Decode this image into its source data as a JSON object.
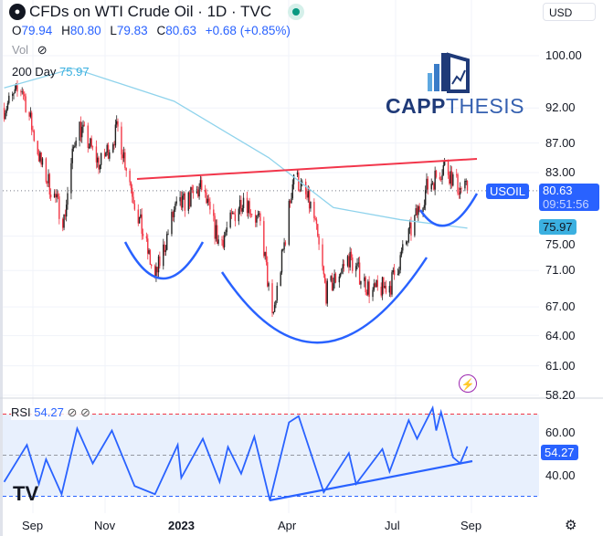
{
  "header": {
    "title": "CFDs on WTI Crude Oil · 1D · TVC",
    "status_color": "#089981",
    "ohlc": {
      "o_label": "O",
      "o": "79.94",
      "h_label": "H",
      "h": "80.80",
      "l_label": "L",
      "l": "79.83",
      "c_label": "C",
      "c": "80.63",
      "change": "+0.68 (+0.85%)"
    },
    "vol_label": "Vol",
    "ma_label": "200 Day",
    "ma_value": "75.97"
  },
  "currency": "USD",
  "symbol_tag": "USOIL",
  "last_price": "80.63",
  "countdown": "09:51:56",
  "ma_tag": "75.97",
  "logo": {
    "text_bold": "CAPP",
    "text_light": "THESIS"
  },
  "rsi": {
    "label": "RSI",
    "value": "54.27",
    "tag": "54.27"
  },
  "colors": {
    "up": "#222222",
    "down": "#f23645",
    "ma": "#8fd3ec",
    "trend_red": "#f2364b",
    "pattern_blue": "#2962ff",
    "rsi": "#2962ff",
    "rsi_band": "#e8f0fd"
  },
  "chart_data": [
    {
      "type": "candlestick",
      "scale": "log",
      "title": "CFDs on WTI Crude Oil · 1D · TVC",
      "y_ticks": [
        "100.00",
        "92.00",
        "87.00",
        "83.00",
        "75.00",
        "71.00",
        "67.00",
        "64.00",
        "61.00",
        "58.20"
      ],
      "x_ticks": [
        "Sep",
        "Nov",
        "2023",
        "Apr",
        "Jul",
        "Sep"
      ],
      "close_path": [
        [
          "2022-08-08",
          92
        ],
        [
          "2022-08-23",
          95
        ],
        [
          "2022-09-08",
          84
        ],
        [
          "2022-09-27",
          77
        ],
        [
          "2022-10-08",
          90
        ],
        [
          "2022-10-27",
          84
        ],
        [
          "2022-11-11",
          89
        ],
        [
          "2022-11-27",
          78
        ],
        [
          "2022-12-12",
          70
        ],
        [
          "2022-12-28",
          78
        ],
        [
          "2023-01-20",
          81
        ],
        [
          "2023-02-04",
          74
        ],
        [
          "2023-02-24",
          80
        ],
        [
          "2023-03-11",
          76
        ],
        [
          "2023-03-20",
          65.5
        ],
        [
          "2023-03-31",
          75
        ],
        [
          "2023-04-07",
          83
        ],
        [
          "2023-04-23",
          78
        ],
        [
          "2023-05-04",
          68.5
        ],
        [
          "2023-05-23",
          72.5
        ],
        [
          "2023-06-11",
          68.5
        ],
        [
          "2023-06-27",
          69.5
        ],
        [
          "2023-07-12",
          75
        ],
        [
          "2023-07-27",
          81
        ],
        [
          "2023-08-11",
          84
        ],
        [
          "2023-08-23",
          81
        ],
        [
          "2023-08-30",
          80.63
        ]
      ],
      "ma200": {
        "name": "200 Day",
        "points": [
          [
            "2022-08-08",
            95
          ],
          [
            "2022-10-05",
            98
          ],
          [
            "2022-12-28",
            93
          ],
          [
            "2023-03-17",
            85
          ],
          [
            "2023-05-10",
            78.5
          ],
          [
            "2023-07-05",
            77
          ],
          [
            "2023-08-30",
            75.97
          ]
        ]
      }
    },
    {
      "type": "line",
      "title": "RSI",
      "ylim": [
        20,
        80
      ],
      "levels": [
        70,
        50,
        30
      ],
      "y_ticks": [
        "60.00",
        "40.00"
      ],
      "points": [
        [
          "2022-08-08",
          37
        ],
        [
          "2022-08-27",
          55
        ],
        [
          "2022-09-06",
          36
        ],
        [
          "2022-09-12",
          48
        ],
        [
          "2022-09-25",
          31
        ],
        [
          "2022-10-08",
          63
        ],
        [
          "2022-10-21",
          46
        ],
        [
          "2022-11-06",
          62
        ],
        [
          "2022-11-25",
          35
        ],
        [
          "2022-12-12",
          31
        ],
        [
          "2022-12-31",
          55
        ],
        [
          "2023-01-03",
          39
        ],
        [
          "2023-01-21",
          58
        ],
        [
          "2023-02-04",
          37
        ],
        [
          "2023-02-11",
          54
        ],
        [
          "2023-02-22",
          41
        ],
        [
          "2023-03-05",
          59
        ],
        [
          "2023-03-18",
          28
        ],
        [
          "2023-04-03",
          66
        ],
        [
          "2023-04-11",
          69
        ],
        [
          "2023-05-02",
          32
        ],
        [
          "2023-05-23",
          51
        ],
        [
          "2023-05-29",
          36
        ],
        [
          "2023-06-20",
          53
        ],
        [
          "2023-06-26",
          42
        ],
        [
          "2023-07-12",
          67
        ],
        [
          "2023-07-19",
          58
        ],
        [
          "2023-08-01",
          73
        ],
        [
          "2023-08-04",
          62
        ],
        [
          "2023-08-08",
          71
        ],
        [
          "2023-08-18",
          49
        ],
        [
          "2023-08-24",
          46
        ],
        [
          "2023-08-30",
          54.27
        ]
      ]
    }
  ]
}
